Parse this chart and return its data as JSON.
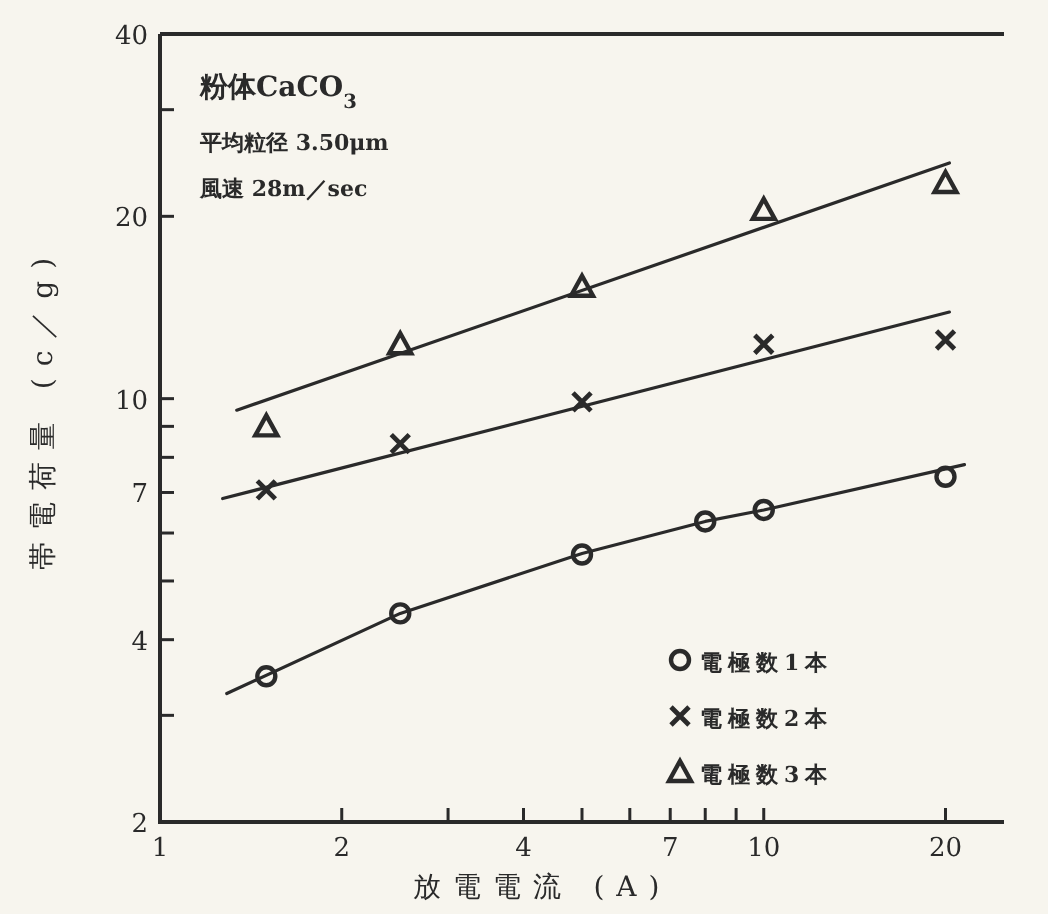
{
  "chart_data": {
    "type": "scatter",
    "title": "粉体CaCO$_{3}$",
    "annotations": [
      "平均粒径 3.50μm",
      "風速 28m／sec"
    ],
    "xlabel": "放電電流 (A)",
    "ylabel": "帯電荷量 (c／g)",
    "log": "xy",
    "grid": false,
    "legend": "bottom right",
    "xlim": [
      1,
      25
    ],
    "ylim": [
      2,
      40
    ],
    "xticks": [
      1,
      2,
      {
        "value": 3,
        "label": null
      },
      4,
      {
        "value": 5,
        "label": null
      },
      {
        "value": 6,
        "label": null
      },
      7,
      {
        "value": 8,
        "label": null
      },
      {
        "value": 9,
        "label": null
      },
      10,
      20
    ],
    "yticks": [
      2,
      {
        "value": 3,
        "label": null
      },
      4,
      {
        "value": 5,
        "label": null
      },
      {
        "value": 6,
        "label": null
      },
      7,
      {
        "value": 8,
        "label": null
      },
      {
        "value": 9,
        "label": null
      },
      10,
      20,
      {
        "value": 30,
        "label": null
      },
      40
    ],
    "series": [
      {
        "name": "電極数1本",
        "marker": "circle",
        "color": "#2a2a2a",
        "x": [
          1.5,
          2.5,
          5,
          8,
          10,
          20
        ],
        "values": [
          3.48,
          4.42,
          5.53,
          6.27,
          6.55,
          7.43
        ]
      },
      {
        "name": "電極数2本",
        "marker": "cross",
        "color": "#2a2a2a",
        "x": [
          1.5,
          2.5,
          5,
          10,
          20
        ],
        "values": [
          7.07,
          8.43,
          9.88,
          12.3,
          12.5
        ]
      },
      {
        "name": "電極数3本",
        "marker": "triangle",
        "color": "#2a2a2a",
        "x": [
          1.5,
          2.5,
          5,
          10,
          20
        ],
        "values": [
          9.0,
          12.3,
          15.3,
          20.5,
          22.7
        ]
      },
      {
        "type": "line",
        "marker": "none",
        "color": "#2a2a2a",
        "x": [
          1.29,
          2.5,
          5,
          8,
          10,
          21.5
        ],
        "values": [
          3.26,
          4.42,
          5.55,
          6.27,
          6.55,
          7.78
        ]
      },
      {
        "type": "line",
        "marker": "none",
        "color": "#2a2a2a",
        "x": [
          1.27,
          20.3
        ],
        "values": [
          6.84,
          13.9
        ]
      },
      {
        "type": "line",
        "marker": "none",
        "color": "#2a2a2a",
        "x": [
          1.34,
          20.3
        ],
        "values": [
          9.57,
          24.5
        ]
      }
    ]
  }
}
